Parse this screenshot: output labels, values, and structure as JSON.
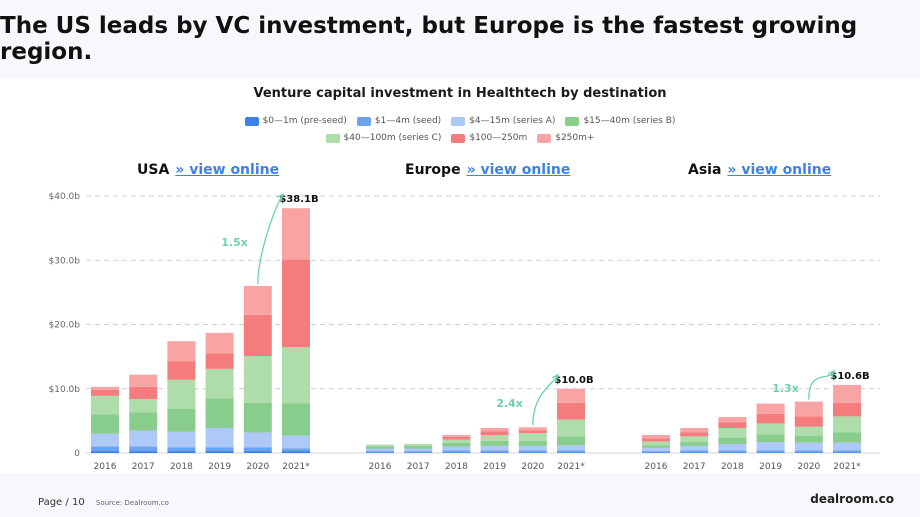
{
  "headline": "The US leads by VC investment, but Europe is the fastest growing region.",
  "footer": {
    "page_label": "Page",
    "page_number": "/ 10",
    "source": "Source: Dealroom.co"
  },
  "brand": "dealroom.co",
  "colors": {
    "pre_seed": "#3b82e8",
    "seed": "#6aa3ef",
    "series_a": "#aec8f7",
    "series_b": "#89cd8c",
    "series_c": "#aedcaa",
    "r100_250": "#f57c7c",
    "r250_plus": "#f9a4a4",
    "annotation": "#6fd1ac",
    "link": "#3b82e8"
  },
  "chart_data": {
    "type": "bar",
    "stacked": true,
    "title": "Venture capital investment in Healthtech by destination",
    "y_ticks": [
      "$40.0b",
      "$30.0b",
      "$20.0b",
      "$10.0b",
      "0"
    ],
    "ylim": [
      0,
      40
    ],
    "grid": true,
    "legend_placement": "top",
    "legend": [
      {
        "key": "pre_seed",
        "label": "$0—1m (pre-seed)"
      },
      {
        "key": "seed",
        "label": "$1—4m (seed)"
      },
      {
        "key": "series_a",
        "label": "$4—15m (series A)"
      },
      {
        "key": "series_b",
        "label": "$15—40m (series B)"
      },
      {
        "key": "series_c",
        "label": "$40—100m (series C)"
      },
      {
        "key": "r100_250",
        "label": "$100—250m"
      },
      {
        "key": "r250_plus",
        "label": "$250m+"
      }
    ],
    "categories": [
      "2016",
      "2017",
      "2018",
      "2019",
      "2020",
      "2021*"
    ],
    "panels": [
      {
        "region": "USA",
        "link_text": "» view online",
        "total_label": "$38.1B",
        "growth_label": "1.5x",
        "series": [
          {
            "key": "pre_seed",
            "values": [
              0.3,
              0.3,
              0.3,
              0.3,
              0.3,
              0.3
            ]
          },
          {
            "key": "seed",
            "values": [
              0.7,
              0.7,
              0.6,
              0.6,
              0.6,
              0.4
            ]
          },
          {
            "key": "series_a",
            "values": [
              2.0,
              2.5,
              2.4,
              3.0,
              2.3,
              2.0
            ]
          },
          {
            "key": "series_b",
            "values": [
              3.0,
              2.8,
              3.6,
              4.6,
              4.6,
              5.0
            ]
          },
          {
            "key": "series_c",
            "values": [
              2.9,
              2.1,
              4.5,
              4.6,
              7.3,
              8.8
            ]
          },
          {
            "key": "r100_250",
            "values": [
              0.9,
              1.9,
              2.9,
              2.4,
              6.4,
              13.6
            ]
          },
          {
            "key": "r250_plus",
            "values": [
              0.5,
              1.9,
              3.1,
              3.2,
              4.5,
              8.0
            ]
          }
        ]
      },
      {
        "region": "Europe",
        "link_text": "» view online",
        "total_label": "$10.0B",
        "growth_label": "2.4x",
        "series": [
          {
            "key": "pre_seed",
            "values": [
              0.1,
              0.1,
              0.1,
              0.1,
              0.1,
              0.1
            ]
          },
          {
            "key": "seed",
            "values": [
              0.2,
              0.2,
              0.3,
              0.3,
              0.3,
              0.3
            ]
          },
          {
            "key": "series_a",
            "values": [
              0.4,
              0.4,
              0.6,
              0.7,
              0.7,
              0.8
            ]
          },
          {
            "key": "series_b",
            "values": [
              0.3,
              0.4,
              0.6,
              0.8,
              0.8,
              1.4
            ]
          },
          {
            "key": "series_c",
            "values": [
              0.3,
              0.3,
              0.5,
              0.9,
              1.2,
              2.6
            ]
          },
          {
            "key": "r100_250",
            "values": [
              0.0,
              0.0,
              0.4,
              0.6,
              0.4,
              2.6
            ]
          },
          {
            "key": "r250_plus",
            "values": [
              0.0,
              0.0,
              0.3,
              0.5,
              0.5,
              2.2
            ]
          }
        ]
      },
      {
        "region": "Asia",
        "link_text": "» view online",
        "total_label": "$10.6B",
        "growth_label": "1.3x",
        "series": [
          {
            "key": "pre_seed",
            "values": [
              0.1,
              0.1,
              0.1,
              0.1,
              0.1,
              0.1
            ]
          },
          {
            "key": "seed",
            "values": [
              0.2,
              0.3,
              0.3,
              0.3,
              0.3,
              0.3
            ]
          },
          {
            "key": "series_a",
            "values": [
              0.5,
              0.7,
              1.0,
              1.3,
              1.2,
              1.2
            ]
          },
          {
            "key": "series_b",
            "values": [
              0.4,
              0.6,
              1.0,
              1.2,
              1.1,
              1.6
            ]
          },
          {
            "key": "series_c",
            "values": [
              0.6,
              0.9,
              1.5,
              1.7,
              1.4,
              2.5
            ]
          },
          {
            "key": "r100_250",
            "values": [
              0.5,
              0.6,
              0.9,
              1.5,
              1.6,
              2.1
            ]
          },
          {
            "key": "r250_plus",
            "values": [
              0.5,
              0.7,
              0.8,
              1.6,
              2.3,
              2.8
            ]
          }
        ]
      }
    ]
  }
}
